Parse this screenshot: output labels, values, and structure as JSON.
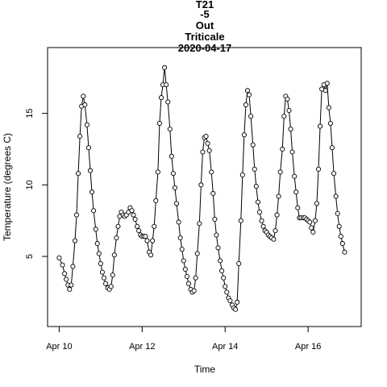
{
  "chart_data": {
    "type": "line",
    "title_lines": [
      "T21",
      "-5",
      "Out",
      "Triticale",
      "2020-04-17"
    ],
    "xlabel": "Time",
    "ylabel": "Temperature (degrees C)",
    "x_ticks": [
      {
        "label": "Apr 10",
        "value": 0
      },
      {
        "label": "Apr 12",
        "value": 2
      },
      {
        "label": "Apr 14",
        "value": 4
      },
      {
        "label": "Apr 16",
        "value": 6
      }
    ],
    "y_ticks": [
      5,
      10,
      15
    ],
    "xlim": [
      -0.28,
      7.28
    ],
    "ylim": [
      0.1,
      19.6
    ],
    "x_unit": "days since Apr 10 00:00",
    "marker": "open-circle",
    "line_style": "solid-black",
    "series": [
      {
        "points": [
          [
            0.0,
            4.9
          ],
          [
            0.08,
            4.4
          ],
          [
            0.13,
            3.8
          ],
          [
            0.17,
            3.4
          ],
          [
            0.21,
            3.0
          ],
          [
            0.25,
            2.7
          ],
          [
            0.29,
            3.0
          ],
          [
            0.33,
            4.3
          ],
          [
            0.38,
            6.1
          ],
          [
            0.42,
            7.9
          ],
          [
            0.46,
            10.8
          ],
          [
            0.5,
            13.4
          ],
          [
            0.54,
            15.5
          ],
          [
            0.58,
            16.2
          ],
          [
            0.62,
            15.6
          ],
          [
            0.67,
            14.2
          ],
          [
            0.71,
            12.6
          ],
          [
            0.75,
            11.0
          ],
          [
            0.79,
            9.5
          ],
          [
            0.83,
            8.2
          ],
          [
            0.88,
            6.9
          ],
          [
            0.92,
            5.9
          ],
          [
            0.96,
            5.2
          ],
          [
            1.0,
            4.5
          ],
          [
            1.04,
            3.9
          ],
          [
            1.08,
            3.5
          ],
          [
            1.12,
            3.1
          ],
          [
            1.17,
            2.8
          ],
          [
            1.21,
            2.7
          ],
          [
            1.25,
            2.9
          ],
          [
            1.29,
            3.7
          ],
          [
            1.33,
            5.1
          ],
          [
            1.38,
            6.3
          ],
          [
            1.42,
            7.1
          ],
          [
            1.46,
            7.8
          ],
          [
            1.5,
            8.1
          ],
          [
            1.54,
            7.9
          ],
          [
            1.58,
            7.8
          ],
          [
            1.62,
            7.9
          ],
          [
            1.67,
            8.1
          ],
          [
            1.71,
            8.4
          ],
          [
            1.75,
            8.2
          ],
          [
            1.79,
            7.9
          ],
          [
            1.83,
            7.6
          ],
          [
            1.88,
            7.1
          ],
          [
            1.92,
            6.8
          ],
          [
            1.96,
            6.5
          ],
          [
            2.0,
            6.4
          ],
          [
            2.04,
            6.4
          ],
          [
            2.08,
            6.4
          ],
          [
            2.12,
            6.1
          ],
          [
            2.17,
            5.3
          ],
          [
            2.21,
            5.1
          ],
          [
            2.25,
            6.1
          ],
          [
            2.29,
            7.1
          ],
          [
            2.33,
            8.9
          ],
          [
            2.38,
            10.9
          ],
          [
            2.42,
            14.3
          ],
          [
            2.46,
            16.1
          ],
          [
            2.5,
            17.0
          ],
          [
            2.54,
            18.2
          ],
          [
            2.58,
            17.0
          ],
          [
            2.62,
            15.8
          ],
          [
            2.67,
            13.9
          ],
          [
            2.71,
            12.0
          ],
          [
            2.75,
            10.8
          ],
          [
            2.79,
            9.8
          ],
          [
            2.83,
            8.7
          ],
          [
            2.88,
            7.4
          ],
          [
            2.92,
            6.3
          ],
          [
            2.96,
            5.5
          ],
          [
            3.0,
            4.7
          ],
          [
            3.04,
            4.1
          ],
          [
            3.08,
            3.6
          ],
          [
            3.12,
            3.1
          ],
          [
            3.17,
            2.7
          ],
          [
            3.21,
            2.5
          ],
          [
            3.25,
            2.6
          ],
          [
            3.29,
            3.5
          ],
          [
            3.33,
            5.2
          ],
          [
            3.38,
            7.3
          ],
          [
            3.42,
            10.0
          ],
          [
            3.46,
            12.3
          ],
          [
            3.5,
            13.3
          ],
          [
            3.54,
            13.4
          ],
          [
            3.58,
            12.9
          ],
          [
            3.62,
            12.4
          ],
          [
            3.67,
            10.9
          ],
          [
            3.71,
            9.4
          ],
          [
            3.75,
            7.6
          ],
          [
            3.79,
            6.5
          ],
          [
            3.83,
            5.6
          ],
          [
            3.88,
            4.7
          ],
          [
            3.92,
            4.0
          ],
          [
            3.96,
            3.5
          ],
          [
            4.0,
            2.9
          ],
          [
            4.04,
            2.5
          ],
          [
            4.08,
            2.1
          ],
          [
            4.12,
            1.9
          ],
          [
            4.17,
            1.6
          ],
          [
            4.21,
            1.4
          ],
          [
            4.25,
            1.3
          ],
          [
            4.29,
            1.8
          ],
          [
            4.33,
            4.5
          ],
          [
            4.38,
            7.5
          ],
          [
            4.42,
            10.7
          ],
          [
            4.46,
            13.5
          ],
          [
            4.5,
            15.6
          ],
          [
            4.54,
            16.6
          ],
          [
            4.58,
            16.3
          ],
          [
            4.62,
            14.8
          ],
          [
            4.67,
            12.8
          ],
          [
            4.71,
            11.1
          ],
          [
            4.75,
            9.9
          ],
          [
            4.79,
            8.8
          ],
          [
            4.83,
            8.1
          ],
          [
            4.88,
            7.5
          ],
          [
            4.92,
            7.1
          ],
          [
            4.96,
            6.8
          ],
          [
            5.0,
            6.7
          ],
          [
            5.04,
            6.5
          ],
          [
            5.08,
            6.4
          ],
          [
            5.12,
            6.3
          ],
          [
            5.17,
            6.2
          ],
          [
            5.21,
            6.8
          ],
          [
            5.25,
            7.9
          ],
          [
            5.29,
            9.2
          ],
          [
            5.33,
            10.9
          ],
          [
            5.38,
            12.5
          ],
          [
            5.42,
            14.8
          ],
          [
            5.46,
            16.2
          ],
          [
            5.5,
            16.0
          ],
          [
            5.54,
            15.2
          ],
          [
            5.58,
            13.9
          ],
          [
            5.62,
            12.3
          ],
          [
            5.67,
            10.6
          ],
          [
            5.71,
            9.5
          ],
          [
            5.75,
            8.4
          ],
          [
            5.79,
            7.7
          ],
          [
            5.83,
            7.7
          ],
          [
            5.88,
            7.7
          ],
          [
            5.92,
            7.7
          ],
          [
            5.96,
            7.6
          ],
          [
            6.0,
            7.5
          ],
          [
            6.04,
            7.4
          ],
          [
            6.08,
            7.0
          ],
          [
            6.12,
            6.7
          ],
          [
            6.17,
            7.5
          ],
          [
            6.21,
            8.7
          ],
          [
            6.25,
            11.1
          ],
          [
            6.29,
            14.1
          ],
          [
            6.33,
            16.7
          ],
          [
            6.38,
            17.0
          ],
          [
            6.42,
            16.6
          ],
          [
            6.46,
            17.1
          ],
          [
            6.5,
            15.4
          ],
          [
            6.54,
            14.3
          ],
          [
            6.58,
            12.6
          ],
          [
            6.62,
            10.8
          ],
          [
            6.67,
            9.2
          ],
          [
            6.71,
            8.0
          ],
          [
            6.75,
            7.1
          ],
          [
            6.79,
            6.4
          ],
          [
            6.83,
            5.9
          ],
          [
            6.88,
            5.3
          ]
        ]
      }
    ]
  }
}
